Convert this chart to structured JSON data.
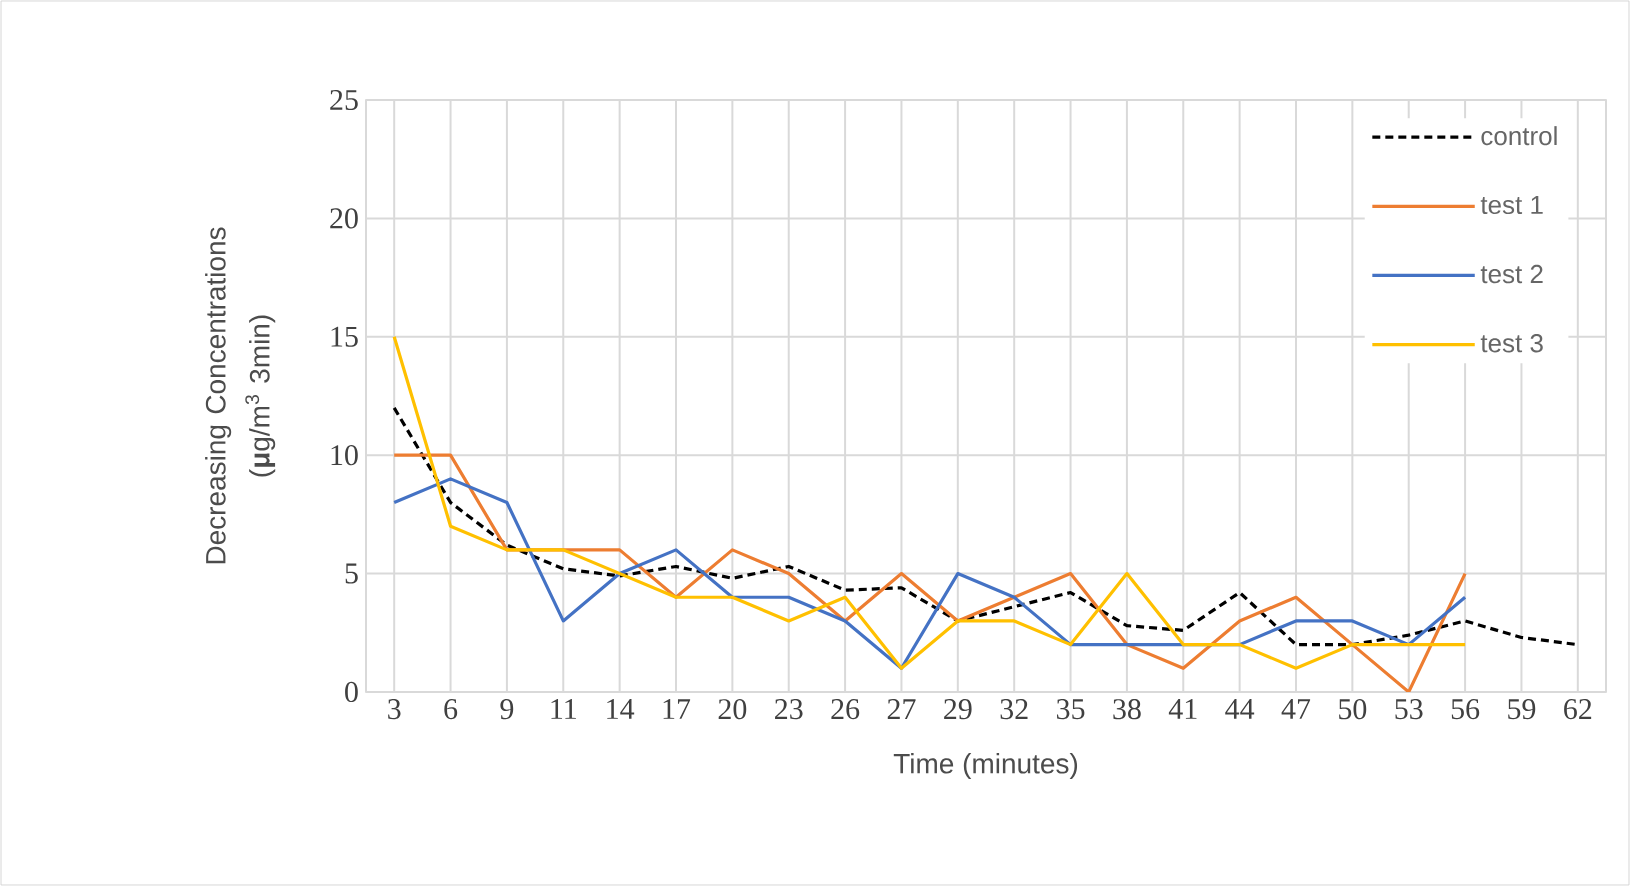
{
  "chart_data": {
    "type": "line",
    "xlabel": "Time (minutes)",
    "ylabel": "Decreasing Concentrations (**μ**g/m$^{3}$ 3min)",
    "categories": [
      "3",
      "6",
      "9",
      "11",
      "14",
      "17",
      "20",
      "23",
      "26",
      "27",
      "29",
      "32",
      "35",
      "38",
      "41",
      "44",
      "47",
      "50",
      "53",
      "56",
      "59",
      "62"
    ],
    "ylim": [
      0,
      25
    ],
    "yticks": [
      0,
      5,
      10,
      15,
      20,
      25
    ],
    "grid": true,
    "legend": "top right",
    "marker": "none",
    "series": [
      {
        "name": "control",
        "color": "#000000",
        "line_style": "dashed",
        "values": [
          12,
          8,
          6.2,
          5.2,
          4.9,
          5.3,
          4.8,
          5.3,
          4.3,
          4.4,
          3,
          3.6,
          4.2,
          2.8,
          2.6,
          4.2,
          2,
          2,
          2.4,
          3,
          2.3,
          2
        ]
      },
      {
        "name": "test 1",
        "color": "#ed7d31",
        "line_style": "solid",
        "values": [
          10,
          10,
          6,
          6,
          6,
          4,
          6,
          5,
          3,
          5,
          3,
          4,
          5,
          2,
          1,
          3,
          4,
          2,
          0,
          5,
          null,
          null
        ]
      },
      {
        "name": "test 2",
        "color": "#4472c4",
        "line_style": "solid",
        "values": [
          8,
          9,
          8,
          3,
          5,
          6,
          4,
          4,
          3,
          1,
          5,
          4,
          2,
          2,
          2,
          2,
          3,
          3,
          2,
          4,
          null,
          null
        ]
      },
      {
        "name": "test 3",
        "color": "#ffc000",
        "line_style": "solid",
        "values": [
          15,
          7,
          6,
          6,
          5,
          4,
          4,
          3,
          4,
          1,
          3,
          3,
          2,
          5,
          2,
          2,
          1,
          2,
          2,
          2,
          null,
          null
        ]
      }
    ]
  }
}
